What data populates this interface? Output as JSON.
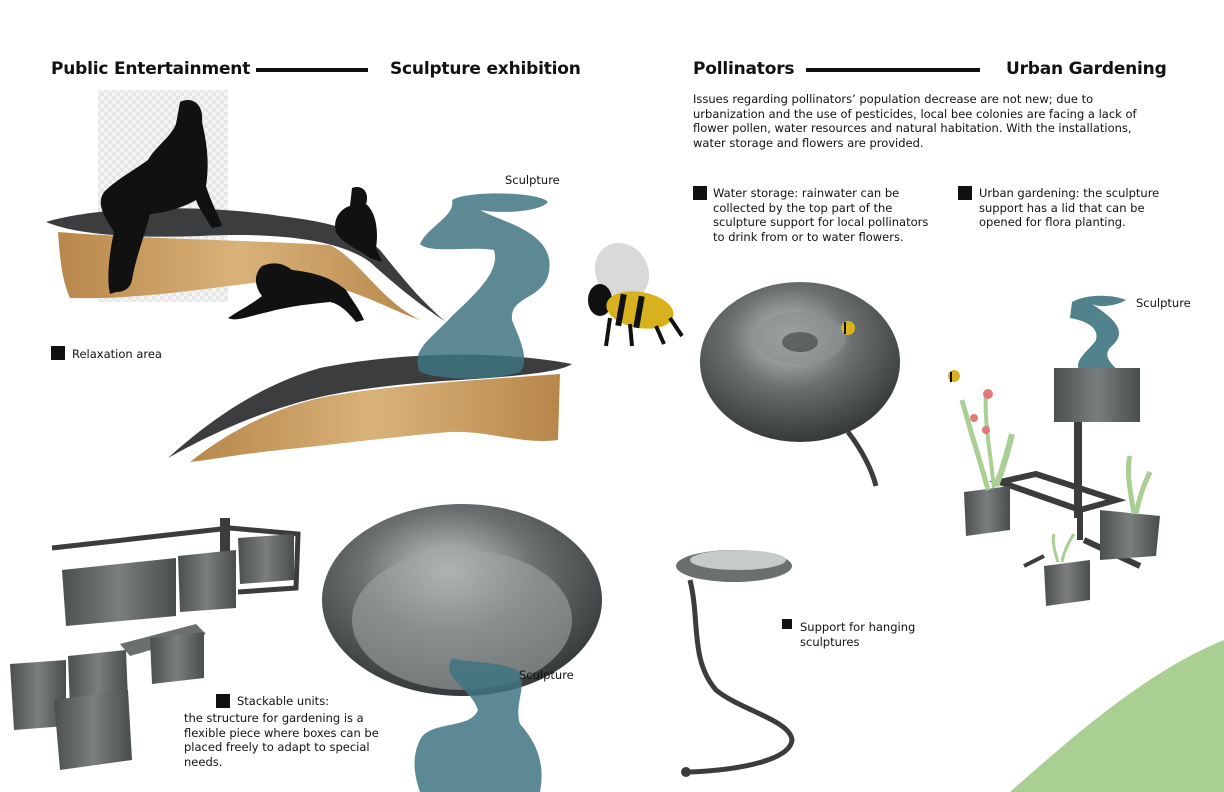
{
  "left": {
    "heading_left": "Public Entertainment",
    "heading_right": "Sculpture exhibition",
    "sculpture_label_top": "Sculpture",
    "sculpture_label_bottom": "Sculpture",
    "relaxation_label": "Relaxation area",
    "stackable_title": "Stackable units:",
    "stackable_text": "the structure for gardening is a flexible piece where boxes can be placed freely to adapt to special needs."
  },
  "right": {
    "heading_left": "Pollinators",
    "heading_right": "Urban Gardening",
    "intro": "Issues regarding pollinators’ population decrease are not new; due to urbanization and the use of pesticides, local bee colonies are facing a lack of flower pollen, water resources and natural habitation. With the installations, water storage and flowers are provided.",
    "water_storage": "Water storage: rainwater can be collected by the top part of the sculpture support for local pollinators to drink from or to water flowers.",
    "urban_gardening": "Urban gardening: the sculpture support has a lid that can be opened for flora planting.",
    "sculpture_label": "Sculpture",
    "support_label": "Support for hanging sculptures"
  },
  "colors": {
    "sculpture_teal": "#3f7480",
    "wood": "#c9a064",
    "bench_top": "#3b3d3f",
    "metal": "#5a5d5e",
    "bee_yellow": "#d8b21e",
    "leaf_green": "#a9cf92"
  }
}
